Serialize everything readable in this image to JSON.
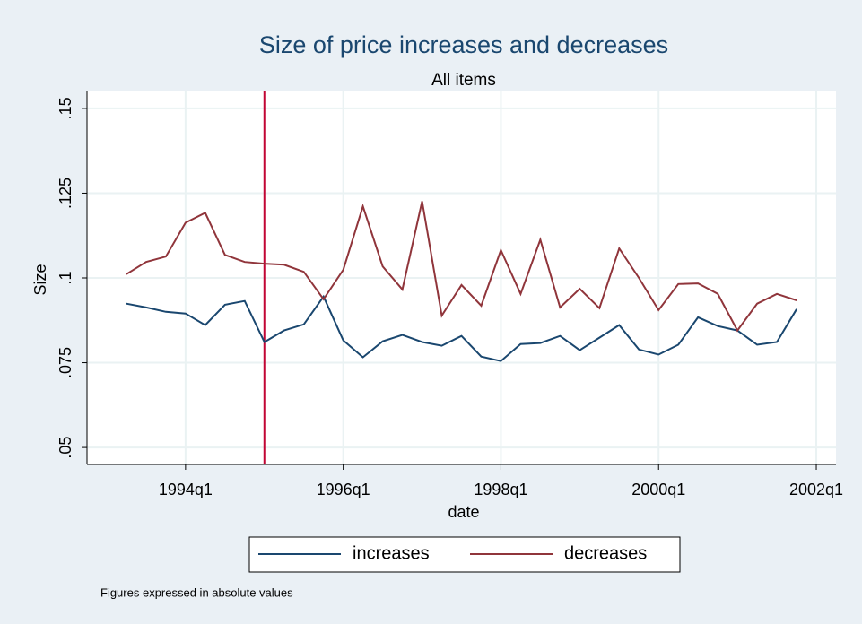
{
  "chart_data": {
    "type": "line",
    "title": "Size of price increases and decreases",
    "subtitle": "All items",
    "x_label": "date",
    "y_label": "Size",
    "note": "Figures expressed in absolute values",
    "x": [
      "1993q2",
      "1993q3",
      "1993q4",
      "1994q1",
      "1994q2",
      "1994q3",
      "1994q4",
      "1995q1",
      "1995q2",
      "1995q3",
      "1995q4",
      "1996q1",
      "1996q2",
      "1996q3",
      "1996q4",
      "1997q1",
      "1997q2",
      "1997q3",
      "1997q4",
      "1998q1",
      "1998q2",
      "1998q3",
      "1998q4",
      "1999q1",
      "1999q2",
      "1999q3",
      "1999q4",
      "2000q1",
      "2000q2",
      "2000q3",
      "2000q4",
      "2001q1",
      "2001q2",
      "2001q3",
      "2001q4"
    ],
    "series": [
      {
        "name": "increases",
        "color": "#1a476f",
        "values": [
          0.0924,
          0.0913,
          0.09,
          0.0895,
          0.0861,
          0.0921,
          0.0932,
          0.0811,
          0.0845,
          0.0863,
          0.0945,
          0.0816,
          0.0766,
          0.0813,
          0.0832,
          0.0811,
          0.08,
          0.0829,
          0.0768,
          0.0755,
          0.0805,
          0.0808,
          0.0829,
          0.0787,
          0.0824,
          0.0861,
          0.0789,
          0.0774,
          0.0803,
          0.0884,
          0.0858,
          0.0845,
          0.0803,
          0.0811,
          0.0908
        ]
      },
      {
        "name": "decreases",
        "color": "#90353b",
        "values": [
          0.1011,
          0.1047,
          0.1063,
          0.1163,
          0.1192,
          0.1068,
          0.1047,
          0.1042,
          0.1039,
          0.1018,
          0.0937,
          0.1024,
          0.1211,
          0.1034,
          0.0966,
          0.1226,
          0.0889,
          0.0979,
          0.0918,
          0.1082,
          0.0953,
          0.1113,
          0.0913,
          0.0968,
          0.0911,
          0.1087,
          0.1,
          0.0905,
          0.0982,
          0.0984,
          0.0953,
          0.0845,
          0.0924,
          0.0953,
          0.0934
        ]
      }
    ],
    "xlim": [
      "1992q4",
      "2002q2"
    ],
    "xticks": [
      "1994q1",
      "1996q1",
      "1998q1",
      "2000q1",
      "2002q1"
    ],
    "ylim": [
      0.045,
      0.155
    ],
    "yticks": [
      {
        "value": 0.05,
        "label": ".05"
      },
      {
        "value": 0.075,
        "label": ".075"
      },
      {
        "value": 0.1,
        "label": ".1"
      },
      {
        "value": 0.125,
        "label": ".125"
      },
      {
        "value": 0.15,
        "label": ".15"
      }
    ],
    "xline": {
      "x": "1995q1",
      "color": "#c10534"
    },
    "grid": true
  }
}
